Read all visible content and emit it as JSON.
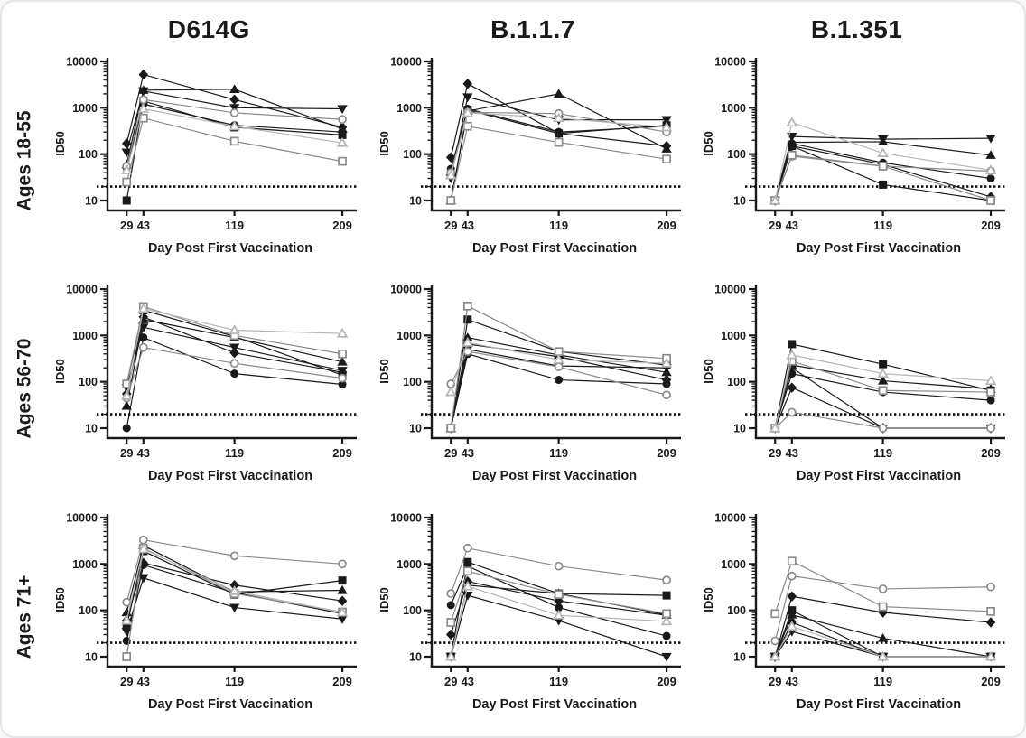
{
  "figure": {
    "columns": [
      "D614G",
      "B.1.1.7",
      "B.1.351"
    ],
    "rows": [
      "Ages 18-55",
      "Ages  56-70",
      "Ages 71+"
    ]
  },
  "chart_data": {
    "type": "line",
    "x": [
      29,
      43,
      119,
      209
    ],
    "xticks": [
      "29",
      "43",
      "119",
      "209"
    ],
    "xlabel": "Day Post First Vaccination",
    "ylabel": "ID50",
    "yscale": "log",
    "ylim": [
      10,
      10000
    ],
    "yticks": [
      10,
      100,
      1000,
      10000
    ],
    "detection_limit": 20,
    "grid": false,
    "legend": "none",
    "columns": [
      "D614G",
      "B.1.1.7",
      "B.1.351"
    ],
    "rows": [
      "Ages 18-55",
      "Ages  56-70",
      "Ages 71+"
    ],
    "colors": {
      "black": "#1a1a1a",
      "gray": "#8a8a8a",
      "lightgray": "#b5b5b5"
    },
    "panels": [
      {
        "row": "Ages 18-55",
        "column": "D614G",
        "series": [
          {
            "marker": "filled-diamond",
            "color": "black",
            "values": [
              170,
              5200,
              1500,
              380
            ]
          },
          {
            "marker": "filled-triangle-up",
            "color": "black",
            "values": [
              60,
              2400,
              2500,
              350
            ]
          },
          {
            "marker": "filled-triangle-down",
            "color": "black",
            "values": [
              110,
              2300,
              1000,
              950
            ]
          },
          {
            "marker": "filled-square",
            "color": "black",
            "values": [
              10,
              1400,
              380,
              260
            ]
          },
          {
            "marker": "filled-circle",
            "color": "black",
            "values": [
              50,
              1200,
              420,
              300
            ]
          },
          {
            "marker": "open-circle",
            "color": "gray",
            "values": [
              55,
              1500,
              780,
              560
            ]
          },
          {
            "marker": "open-square",
            "color": "gray",
            "values": [
              25,
              600,
              190,
              70
            ]
          },
          {
            "marker": "open-triangle",
            "color": "lightgray",
            "values": [
              45,
              950,
              400,
              175
            ]
          }
        ]
      },
      {
        "row": "Ages 18-55",
        "column": "B.1.1.7",
        "series": [
          {
            "marker": "filled-diamond",
            "color": "black",
            "values": [
              85,
              3300,
              280,
              150
            ]
          },
          {
            "marker": "filled-triangle-up",
            "color": "black",
            "values": [
              10,
              850,
              2000,
              130
            ]
          },
          {
            "marker": "filled-triangle-down",
            "color": "black",
            "values": [
              30,
              1700,
              550,
              550
            ]
          },
          {
            "marker": "filled-square",
            "color": "black",
            "values": [
              10,
              900,
              280,
              420
            ]
          },
          {
            "marker": "filled-circle",
            "color": "black",
            "values": [
              48,
              950,
              300,
              400
            ]
          },
          {
            "marker": "open-circle",
            "color": "gray",
            "values": [
              40,
              800,
              750,
              300
            ]
          },
          {
            "marker": "open-square",
            "color": "gray",
            "values": [
              10,
              400,
              180,
              78
            ]
          },
          {
            "marker": "open-triangle",
            "color": "lightgray",
            "values": [
              35,
              780,
              600,
              380
            ]
          }
        ]
      },
      {
        "row": "Ages 18-55",
        "column": "B.1.351",
        "series": [
          {
            "marker": "filled-diamond",
            "color": "black",
            "values": [
              10,
              150,
              60,
              12
            ]
          },
          {
            "marker": "filled-triangle-up",
            "color": "black",
            "values": [
              10,
              180,
              185,
              95
            ]
          },
          {
            "marker": "filled-triangle-down",
            "color": "black",
            "values": [
              10,
              240,
              210,
              220
            ]
          },
          {
            "marker": "filled-square",
            "color": "black",
            "values": [
              10,
              150,
              22,
              10
            ]
          },
          {
            "marker": "filled-circle",
            "color": "black",
            "values": [
              10,
              170,
              65,
              30
            ]
          },
          {
            "marker": "open-circle",
            "color": "gray",
            "values": [
              10,
              90,
              55,
              43
            ]
          },
          {
            "marker": "open-square",
            "color": "gray",
            "values": [
              10,
              95,
              55,
              10
            ]
          },
          {
            "marker": "open-triangle",
            "color": "lightgray",
            "values": [
              10,
              480,
              105,
              45
            ]
          }
        ]
      },
      {
        "row": "Ages  56-70",
        "column": "D614G",
        "series": [
          {
            "marker": "filled-diamond",
            "color": "black",
            "values": [
              55,
              2500,
              420,
              160
            ]
          },
          {
            "marker": "filled-triangle-up",
            "color": "black",
            "values": [
              30,
              2200,
              900,
              270
            ]
          },
          {
            "marker": "filled-triangle-down",
            "color": "black",
            "values": [
              75,
              1500,
              550,
              175
            ]
          },
          {
            "marker": "filled-square",
            "color": "black",
            "values": [
              90,
              3500,
              950,
              140
            ]
          },
          {
            "marker": "filled-circle",
            "color": "black",
            "values": [
              10,
              900,
              150,
              88
            ]
          },
          {
            "marker": "open-circle",
            "color": "gray",
            "values": [
              45,
              550,
              250,
              120
            ]
          },
          {
            "marker": "open-square",
            "color": "gray",
            "values": [
              90,
              4200,
              1000,
              400
            ]
          },
          {
            "marker": "open-triangle",
            "color": "lightgray",
            "values": [
              50,
              3800,
              1300,
              1100
            ]
          }
        ]
      },
      {
        "row": "Ages  56-70",
        "column": "B.1.1.7",
        "series": [
          {
            "marker": "filled-diamond",
            "color": "black",
            "values": [
              10,
              650,
              350,
              110
            ]
          },
          {
            "marker": "filled-triangle-up",
            "color": "black",
            "values": [
              10,
              900,
              380,
              160
            ]
          },
          {
            "marker": "filled-triangle-down",
            "color": "black",
            "values": [
              10,
              500,
              220,
              200
            ]
          },
          {
            "marker": "filled-square",
            "color": "black",
            "values": [
              10,
              2200,
              450,
              230
            ]
          },
          {
            "marker": "filled-circle",
            "color": "black",
            "values": [
              10,
              400,
              110,
              90
            ]
          },
          {
            "marker": "open-circle",
            "color": "gray",
            "values": [
              90,
              450,
              210,
              52
            ]
          },
          {
            "marker": "open-square",
            "color": "gray",
            "values": [
              10,
              4300,
              450,
              320
            ]
          },
          {
            "marker": "open-triangle",
            "color": "lightgray",
            "values": [
              60,
              700,
              300,
              250
            ]
          }
        ]
      },
      {
        "row": "Ages  56-70",
        "column": "B.1.351",
        "series": [
          {
            "marker": "filled-diamond",
            "color": "black",
            "values": [
              10,
              75,
              10,
              10
            ]
          },
          {
            "marker": "filled-triangle-up",
            "color": "black",
            "values": [
              10,
              230,
              105,
              70
            ]
          },
          {
            "marker": "filled-triangle-down",
            "color": "black",
            "values": [
              10,
              200,
              10,
              10
            ]
          },
          {
            "marker": "filled-square",
            "color": "black",
            "values": [
              10,
              650,
              240,
              65
            ]
          },
          {
            "marker": "filled-circle",
            "color": "black",
            "values": [
              10,
              150,
              60,
              40
            ]
          },
          {
            "marker": "open-circle",
            "color": "gray",
            "values": [
              10,
              22,
              10,
              10
            ]
          },
          {
            "marker": "open-square",
            "color": "gray",
            "values": [
              10,
              280,
              65,
              60
            ]
          },
          {
            "marker": "open-triangle",
            "color": "lightgray",
            "values": [
              10,
              380,
              150,
              105
            ]
          }
        ]
      },
      {
        "row": "Ages 71+",
        "column": "D614G",
        "series": [
          {
            "marker": "filled-diamond",
            "color": "black",
            "values": [
              60,
              1050,
              350,
              160
            ]
          },
          {
            "marker": "filled-triangle-up",
            "color": "black",
            "values": [
              90,
              2500,
              250,
              270
            ]
          },
          {
            "marker": "filled-triangle-down",
            "color": "black",
            "values": [
              35,
              500,
              115,
              65
            ]
          },
          {
            "marker": "filled-square",
            "color": "black",
            "values": [
              45,
              1900,
              220,
              440
            ]
          },
          {
            "marker": "filled-circle",
            "color": "black",
            "values": [
              22,
              950,
              240,
              85
            ]
          },
          {
            "marker": "open-circle",
            "color": "gray",
            "values": [
              150,
              3300,
              1500,
              1000
            ]
          },
          {
            "marker": "open-square",
            "color": "gray",
            "values": [
              10,
              2200,
              230,
              92
            ]
          },
          {
            "marker": "open-triangle",
            "color": "lightgray",
            "values": [
              60,
              2100,
              260,
              90
            ]
          }
        ]
      },
      {
        "row": "Ages 71+",
        "column": "B.1.1.7",
        "series": [
          {
            "marker": "filled-diamond",
            "color": "black",
            "values": [
              30,
              420,
              160,
              78
            ]
          },
          {
            "marker": "filled-triangle-up",
            "color": "black",
            "values": [
              10,
              350,
              230,
              80
            ]
          },
          {
            "marker": "filled-triangle-down",
            "color": "black",
            "values": [
              10,
              210,
              60,
              10
            ]
          },
          {
            "marker": "filled-square",
            "color": "black",
            "values": [
              10,
              1100,
              230,
              210
            ]
          },
          {
            "marker": "filled-circle",
            "color": "black",
            "values": [
              130,
              900,
              115,
              28
            ]
          },
          {
            "marker": "open-circle",
            "color": "gray",
            "values": [
              230,
              2200,
              900,
              450
            ]
          },
          {
            "marker": "open-square",
            "color": "gray",
            "values": [
              55,
              700,
              220,
              85
            ]
          },
          {
            "marker": "open-triangle",
            "color": "lightgray",
            "values": [
              10,
              330,
              78,
              58
            ]
          }
        ]
      },
      {
        "row": "Ages 71+",
        "column": "B.1.351",
        "series": [
          {
            "marker": "filled-diamond",
            "color": "black",
            "values": [
              10,
              200,
              90,
              55
            ]
          },
          {
            "marker": "filled-triangle-up",
            "color": "black",
            "values": [
              10,
              80,
              25,
              10
            ]
          },
          {
            "marker": "filled-triangle-down",
            "color": "black",
            "values": [
              10,
              35,
              10,
              10
            ]
          },
          {
            "marker": "filled-square",
            "color": "black",
            "values": [
              10,
              100,
              10,
              10
            ]
          },
          {
            "marker": "filled-circle",
            "color": "black",
            "values": [
              10,
              55,
              10,
              10
            ]
          },
          {
            "marker": "open-circle",
            "color": "gray",
            "values": [
              22,
              550,
              290,
              320
            ]
          },
          {
            "marker": "open-square",
            "color": "gray",
            "values": [
              85,
              1150,
              120,
              95
            ]
          },
          {
            "marker": "open-triangle",
            "color": "lightgray",
            "values": [
              10,
              45,
              10,
              10
            ]
          }
        ]
      }
    ]
  }
}
